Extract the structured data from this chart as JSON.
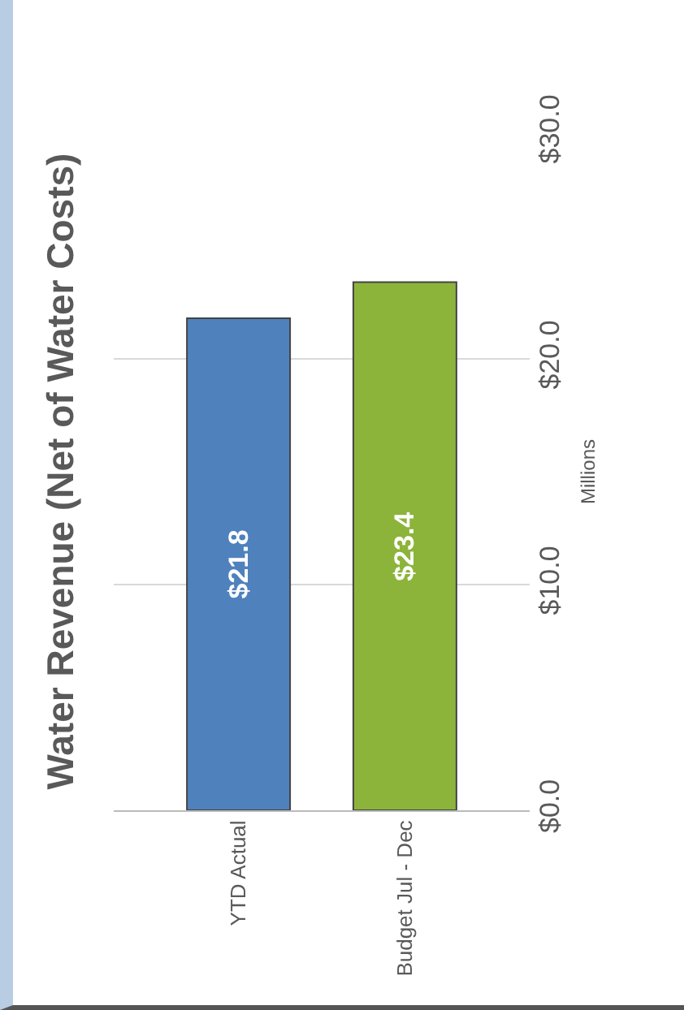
{
  "chart_data": {
    "type": "bar",
    "title": "Water Revenue (Net of Water Costs)",
    "ylabel": "Millions",
    "categories": [
      "YTD Actual",
      "Budget Jul - Dec"
    ],
    "values": [
      21.8,
      23.4
    ],
    "colors": [
      "#4f81bd",
      "#8cb43a"
    ],
    "value_labels": [
      "$21.8",
      "$23.4"
    ],
    "ylim": [
      0,
      30
    ],
    "yticks": [
      {
        "value": 0,
        "label": "$0.0"
      },
      {
        "value": 10,
        "label": "$10.0"
      },
      {
        "value": 20,
        "label": "$20.0"
      },
      {
        "value": 30,
        "label": "$30.0"
      }
    ],
    "grid": true,
    "legend": false
  }
}
